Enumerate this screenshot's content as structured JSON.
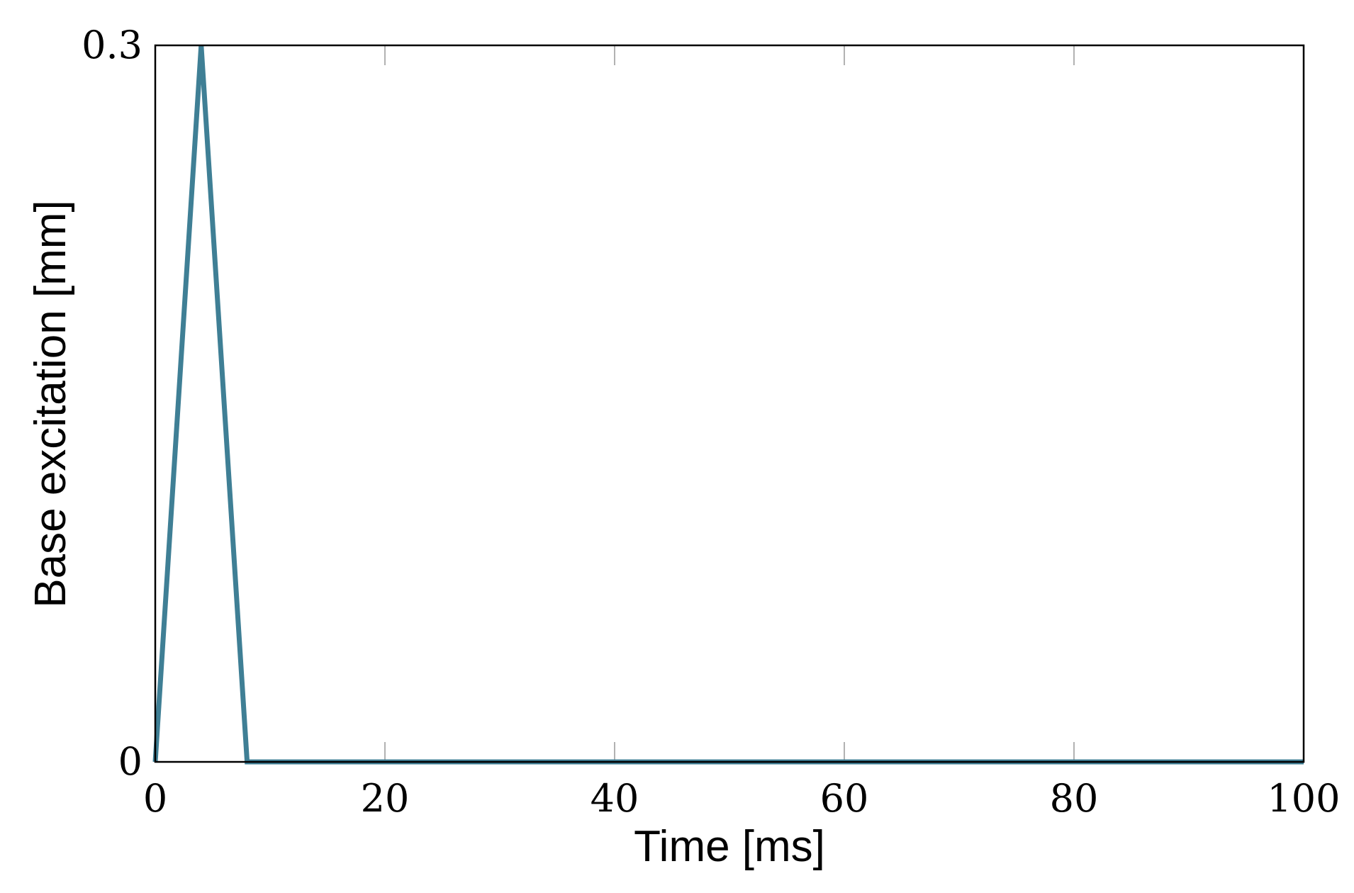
{
  "chart_data": {
    "type": "line",
    "x_label": "Time [ms]",
    "y_label": "Base excitation [mm]",
    "x": [
      0,
      4,
      8,
      100
    ],
    "values": [
      0,
      0.3,
      0,
      0
    ],
    "color": "#3f7f95",
    "xlim": [
      0,
      100
    ],
    "xticks": [
      0,
      20,
      40,
      60,
      80,
      100
    ],
    "ylim": [
      0,
      0.3
    ],
    "yticks": [
      0,
      0.3
    ]
  }
}
